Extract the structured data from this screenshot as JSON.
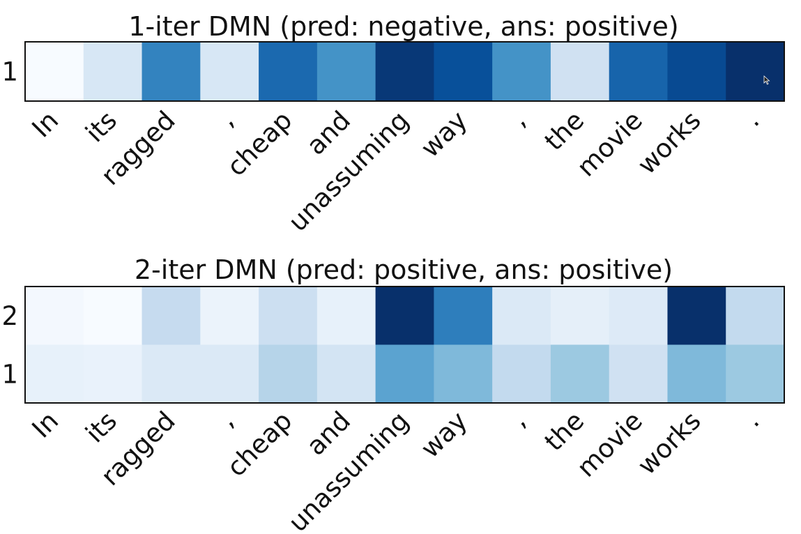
{
  "chart_data": [
    {
      "type": "heatmap",
      "title": "1-iter DMN (pred: negative, ans: positive)",
      "colormap": "Blues",
      "xlabel": "",
      "ylabel": "",
      "x_tick_labels": [
        "In",
        "its",
        "ragged",
        ",",
        "cheap",
        "and",
        "unassuming",
        "way",
        ",",
        "the",
        "movie",
        "works",
        "."
      ],
      "y_tick_labels": [
        "1"
      ],
      "values": [
        [
          0.0,
          0.16,
          0.68,
          0.16,
          0.78,
          0.62,
          0.97,
          0.88,
          0.62,
          0.2,
          0.8,
          0.9,
          1.0
        ]
      ]
    },
    {
      "type": "heatmap",
      "title": "2-iter DMN (pred: positive, ans: positive)",
      "colormap": "Blues",
      "xlabel": "",
      "ylabel": "",
      "x_tick_labels": [
        "In",
        "its",
        "ragged",
        ",",
        "cheap",
        "and",
        "unassuming",
        "way",
        ",",
        "the",
        "movie",
        "works",
        "."
      ],
      "y_tick_labels": [
        "2",
        "1"
      ],
      "values": [
        [
          0.02,
          0.0,
          0.25,
          0.06,
          0.22,
          0.08,
          1.0,
          0.7,
          0.14,
          0.09,
          0.13,
          1.0,
          0.26
        ],
        [
          0.08,
          0.07,
          0.14,
          0.14,
          0.3,
          0.18,
          0.55,
          0.45,
          0.26,
          0.38,
          0.2,
          0.45,
          0.38
        ]
      ]
    }
  ]
}
